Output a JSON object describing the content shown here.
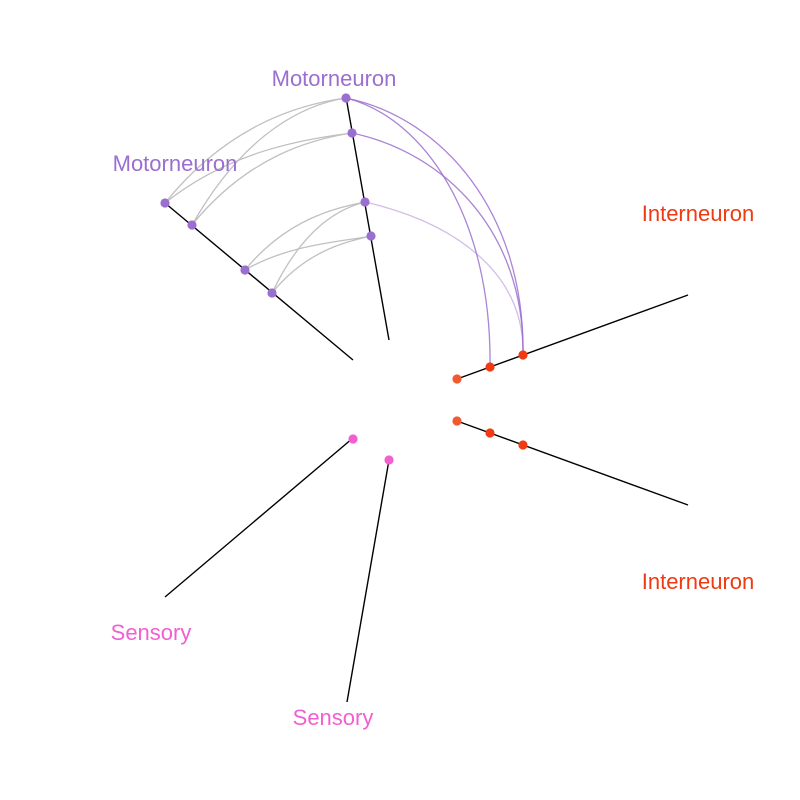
{
  "colors": {
    "motorneuron": "#9b6fcf",
    "interneuron": "#f03a12",
    "sensory": "#f25fd0",
    "edge_same_group": "#c0c0c0",
    "axis": "#000000"
  },
  "labels": {
    "motor_a": "Motorneuron",
    "motor_b": "Motorneuron",
    "inter_a": "Interneuron",
    "inter_b": "Interneuron",
    "sensory_a": "Sensory",
    "sensory_b": "Sensory"
  },
  "axes": [
    {
      "id": "motor_a",
      "group": "Motorneuron",
      "node_count": 4
    },
    {
      "id": "motor_b",
      "group": "Motorneuron",
      "node_count": 4
    },
    {
      "id": "inter_a",
      "group": "Interneuron",
      "node_count": 3
    },
    {
      "id": "inter_b",
      "group": "Interneuron",
      "node_count": 3
    },
    {
      "id": "sensory_a",
      "group": "Sensory",
      "node_count": 1
    },
    {
      "id": "sensory_b",
      "group": "Sensory",
      "node_count": 1
    }
  ],
  "edges": [
    {
      "from": "motor_b.0",
      "to": "motor_a.0",
      "type": "same"
    },
    {
      "from": "motor_b.0",
      "to": "motor_a.1",
      "type": "same"
    },
    {
      "from": "motor_b.1",
      "to": "motor_a.0",
      "type": "same"
    },
    {
      "from": "motor_b.1",
      "to": "motor_a.1",
      "type": "same"
    },
    {
      "from": "motor_b.2",
      "to": "motor_a.2",
      "type": "same"
    },
    {
      "from": "motor_b.2",
      "to": "motor_a.3",
      "type": "same"
    },
    {
      "from": "motor_b.3",
      "to": "motor_a.2",
      "type": "same"
    },
    {
      "from": "motor_b.3",
      "to": "motor_a.3",
      "type": "same"
    },
    {
      "from": "inter_a.1",
      "to": "motor_a.0",
      "type": "cross"
    },
    {
      "from": "inter_a.2",
      "to": "motor_a.0",
      "type": "cross"
    },
    {
      "from": "inter_a.2",
      "to": "motor_a.1",
      "type": "cross"
    },
    {
      "from": "inter_a.2",
      "to": "motor_a.2",
      "type": "cross-light"
    }
  ]
}
